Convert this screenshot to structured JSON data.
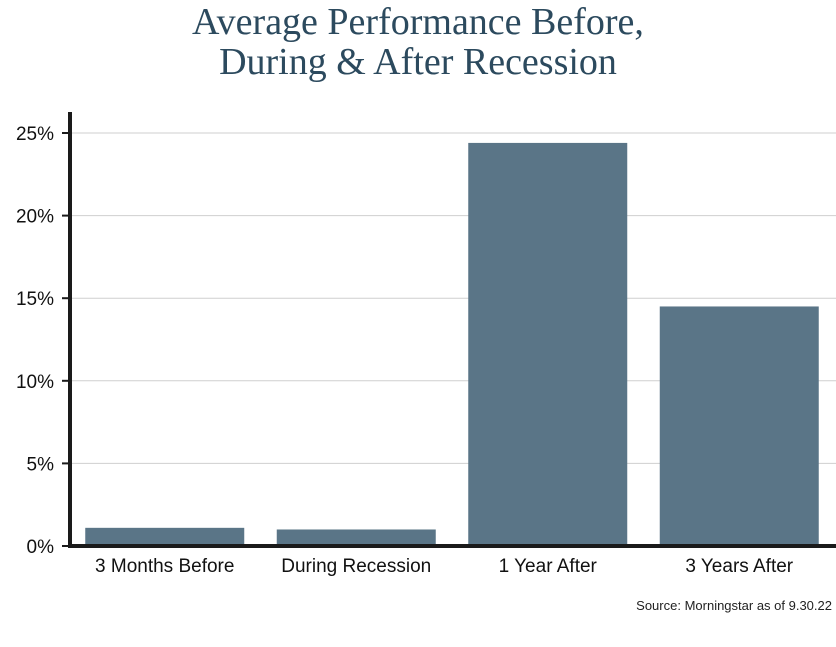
{
  "title_line1": "Average Performance Before,",
  "title_line2": "During & After Recession",
  "source": "Source: Morningstar as of 9.30.22",
  "colors": {
    "bar": "#5a7587",
    "title": "#2c4a5e",
    "grid": "#cfcfcf",
    "axis": "#1a1a1a"
  },
  "chart_data": {
    "type": "bar",
    "categories": [
      "3 Months Before",
      "During Recession",
      "1 Year After",
      "3 Years After"
    ],
    "values": [
      1.1,
      1.0,
      24.4,
      14.5
    ],
    "ylim": [
      0,
      25
    ],
    "yticks": [
      0,
      5,
      10,
      15,
      20,
      25
    ],
    "ytick_labels": [
      "0%",
      "5%",
      "10%",
      "15%",
      "20%",
      "25%"
    ],
    "grid": true
  }
}
